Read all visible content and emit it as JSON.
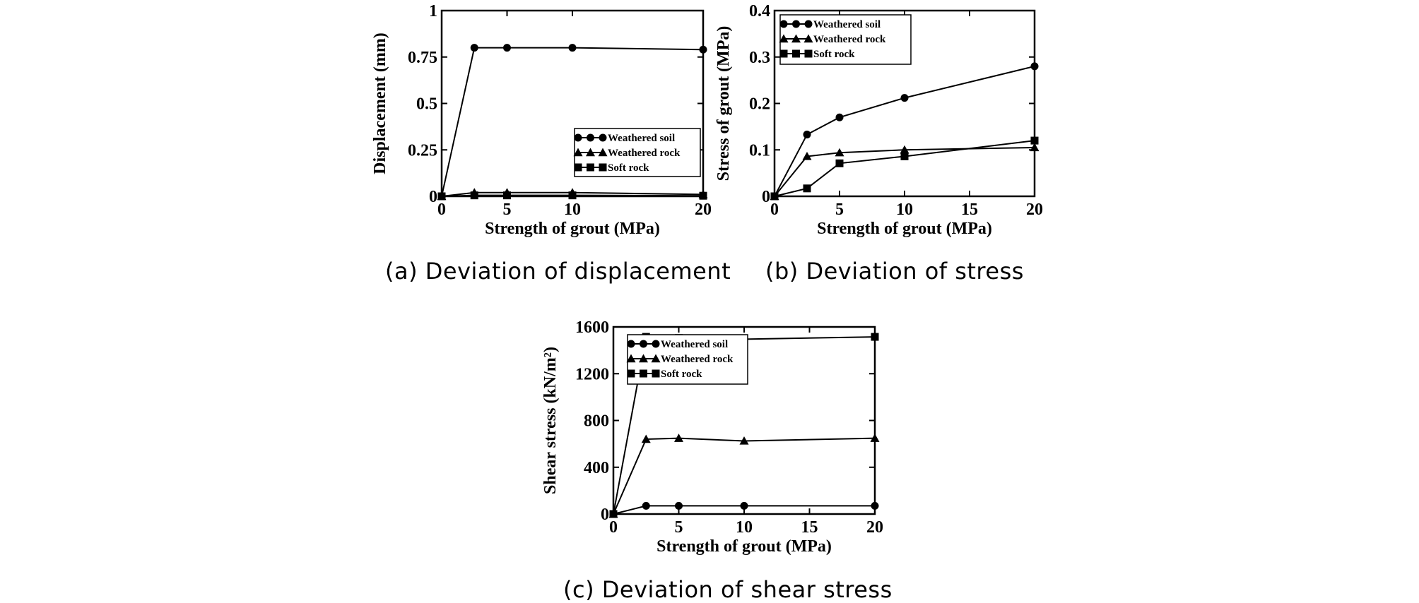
{
  "chart_data": [
    {
      "type": "line",
      "caption": "(a) Deviation of displacement",
      "xlabel": "Strength of grout (MPa)",
      "ylabel": "Displacement (mm)",
      "xlim": [
        0,
        20
      ],
      "ylim": [
        0,
        1
      ],
      "xticks": [
        0,
        5,
        10,
        20
      ],
      "yticks": [
        0,
        0.25,
        0.5,
        0.75,
        1
      ],
      "ytick_labels": [
        "0",
        "0.25",
        "0.5",
        "0.75",
        "1"
      ],
      "legend_position": "bottom-right",
      "x": [
        0,
        2.5,
        5,
        10,
        20
      ],
      "series": [
        {
          "name": "Weathered soil",
          "marker": "circle",
          "values": [
            0,
            0.8,
            0.8,
            0.8,
            0.79
          ]
        },
        {
          "name": "Weathered rock",
          "marker": "triangle",
          "values": [
            0,
            0.02,
            0.02,
            0.02,
            0.01
          ]
        },
        {
          "name": "Soft rock",
          "marker": "square",
          "values": [
            0,
            0.005,
            0.005,
            0.005,
            0.003
          ]
        }
      ]
    },
    {
      "type": "line",
      "caption": "(b) Deviation of stress",
      "xlabel": "Strength of grout (MPa)",
      "ylabel": "Stress of grout (MPa)",
      "xlim": [
        0,
        20
      ],
      "ylim": [
        0,
        0.4
      ],
      "xticks": [
        0,
        5,
        10,
        15,
        20
      ],
      "yticks": [
        0,
        0.1,
        0.2,
        0.3,
        0.4
      ],
      "ytick_labels": [
        "0",
        "0.1",
        "0.2",
        "0.3",
        "0.4"
      ],
      "legend_position": "top-left",
      "x": [
        0,
        2.5,
        5,
        10,
        20
      ],
      "series": [
        {
          "name": "Weathered soil",
          "marker": "circle",
          "values": [
            0,
            0.133,
            0.17,
            0.212,
            0.28
          ]
        },
        {
          "name": "Weathered rock",
          "marker": "triangle",
          "values": [
            0,
            0.086,
            0.094,
            0.1,
            0.105
          ]
        },
        {
          "name": "Soft rock",
          "marker": "square",
          "values": [
            0,
            0.017,
            0.071,
            0.086,
            0.12
          ]
        }
      ]
    },
    {
      "type": "line",
      "caption": "(c) Deviation of shear stress",
      "xlabel": "Strength of grout (MPa)",
      "ylabel": "Shear stress (kN/m²)",
      "xlim": [
        0,
        20
      ],
      "ylim": [
        0,
        1600
      ],
      "xticks": [
        0,
        5,
        10,
        15,
        20
      ],
      "yticks": [
        0,
        400,
        800,
        1200,
        1600
      ],
      "ytick_labels": [
        "0",
        "400",
        "800",
        "1200",
        "1600"
      ],
      "legend_position": "top-left",
      "x": [
        0,
        2.5,
        5,
        10,
        20
      ],
      "series": [
        {
          "name": "Weathered soil",
          "marker": "circle",
          "values": [
            0,
            70,
            70,
            70,
            70
          ]
        },
        {
          "name": "Weathered rock",
          "marker": "triangle",
          "values": [
            0,
            640,
            648,
            625,
            648
          ]
        },
        {
          "name": "Soft rock",
          "marker": "square",
          "values": [
            0,
            1515,
            1505,
            1495,
            1515
          ]
        }
      ]
    }
  ]
}
